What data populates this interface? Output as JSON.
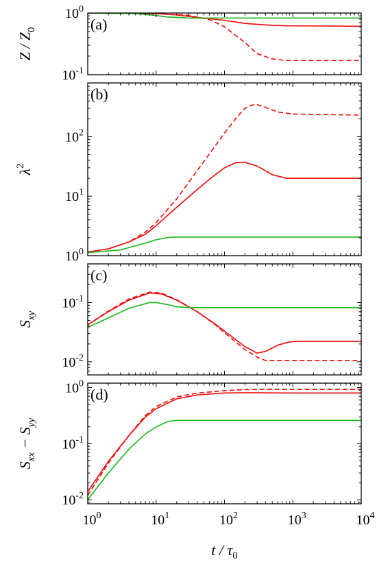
{
  "chart_data": [
    {
      "type": "line",
      "panel_label": "(a)",
      "ylabel_main": "Z / Z",
      "ylabel_sub": "0",
      "x_scale": "log",
      "y_scale": "log",
      "xlim": [
        1,
        10000
      ],
      "ylim": [
        0.1,
        1
      ],
      "yticks": [
        {
          "mantissa": "10",
          "exp": "0",
          "v": 1
        },
        {
          "mantissa": "10",
          "exp": "-1",
          "v": 0.1
        }
      ],
      "grid": false,
      "series": [
        {
          "color": "#ee1111",
          "dash": "solid",
          "x": [
            1,
            10,
            20,
            40,
            100,
            200,
            400,
            800,
            1000,
            10000
          ],
          "y": [
            1.0,
            0.98,
            0.93,
            0.85,
            0.76,
            0.68,
            0.64,
            0.62,
            0.62,
            0.61
          ]
        },
        {
          "color": "#ee1111",
          "dash": "dashed",
          "x": [
            1,
            10,
            30,
            60,
            100,
            200,
            300,
            500,
            800,
            1000,
            10000
          ],
          "y": [
            1.0,
            0.98,
            0.92,
            0.78,
            0.6,
            0.33,
            0.22,
            0.18,
            0.17,
            0.17,
            0.17
          ]
        },
        {
          "color": "#22bb22",
          "dash": "solid",
          "x": [
            1,
            5,
            10,
            15,
            20,
            30,
            10000
          ],
          "y": [
            1.0,
            0.98,
            0.91,
            0.86,
            0.85,
            0.83,
            0.83
          ]
        }
      ]
    },
    {
      "type": "line",
      "panel_label": "(b)",
      "ylabel_main": "λ",
      "ylabel_sup": "2",
      "x_scale": "log",
      "y_scale": "log",
      "xlim": [
        1,
        10000
      ],
      "ylim": [
        1,
        800
      ],
      "yticks": [
        {
          "mantissa": "10",
          "exp": "0",
          "v": 1
        },
        {
          "mantissa": "10",
          "exp": "1",
          "v": 10
        },
        {
          "mantissa": "10",
          "exp": "2",
          "v": 100
        }
      ],
      "grid": false,
      "series": [
        {
          "color": "#ee1111",
          "dash": "solid",
          "x": [
            1,
            2,
            4,
            7,
            10,
            20,
            40,
            70,
            100,
            150,
            200,
            300,
            500,
            800,
            1000,
            10000
          ],
          "y": [
            1.15,
            1.3,
            1.7,
            2.3,
            3.2,
            6.5,
            13,
            22,
            30,
            37,
            37,
            32,
            23,
            20,
            20,
            20
          ]
        },
        {
          "color": "#ee1111",
          "dash": "dashed",
          "x": [
            1,
            2,
            4,
            7,
            10,
            20,
            40,
            70,
            100,
            150,
            200,
            250,
            300,
            400,
            600,
            1000,
            10000
          ],
          "y": [
            1.15,
            1.3,
            1.7,
            2.5,
            3.6,
            9,
            27,
            65,
            115,
            210,
            300,
            340,
            345,
            310,
            260,
            240,
            230
          ]
        },
        {
          "color": "#22bb22",
          "dash": "solid",
          "x": [
            1,
            3,
            6,
            10,
            15,
            20,
            30,
            10000
          ],
          "y": [
            1.12,
            1.25,
            1.55,
            1.85,
            2.02,
            2.05,
            2.05,
            2.05
          ]
        }
      ]
    },
    {
      "type": "line",
      "panel_label": "(c)",
      "ylabel_main": "S",
      "ylabel_sub": "xy",
      "x_scale": "log",
      "y_scale": "log",
      "xlim": [
        1,
        10000
      ],
      "ylim": [
        0.006,
        0.45
      ],
      "yticks": [
        {
          "mantissa": "10",
          "exp": "-1",
          "v": 0.1
        },
        {
          "mantissa": "10",
          "exp": "-2",
          "v": 0.01
        }
      ],
      "grid": false,
      "series": [
        {
          "color": "#ee1111",
          "dash": "solid",
          "x": [
            1,
            2,
            4,
            8,
            12,
            20,
            40,
            70,
            100,
            200,
            300,
            400,
            600,
            800,
            1000,
            10000
          ],
          "y": [
            0.042,
            0.07,
            0.11,
            0.145,
            0.14,
            0.11,
            0.07,
            0.045,
            0.033,
            0.018,
            0.014,
            0.015,
            0.019,
            0.021,
            0.022,
            0.022
          ]
        },
        {
          "color": "#ee1111",
          "dash": "dashed",
          "x": [
            1,
            2,
            4,
            8,
            12,
            20,
            40,
            70,
            100,
            200,
            300,
            400,
            600,
            800,
            1000,
            10000
          ],
          "y": [
            0.042,
            0.072,
            0.115,
            0.15,
            0.145,
            0.112,
            0.07,
            0.044,
            0.031,
            0.016,
            0.012,
            0.0105,
            0.0105,
            0.0105,
            0.0105,
            0.0105
          ]
        },
        {
          "color": "#22bb22",
          "dash": "solid",
          "x": [
            1,
            2,
            4,
            8,
            10,
            15,
            20,
            30,
            10000
          ],
          "y": [
            0.038,
            0.055,
            0.08,
            0.1,
            0.1,
            0.092,
            0.085,
            0.082,
            0.082
          ]
        }
      ]
    },
    {
      "type": "line",
      "panel_label": "(d)",
      "ylabel_main": "S",
      "ylabel_sub": "xx",
      "ylabel_minus": " − S",
      "ylabel_sub2": "yy",
      "x_scale": "log",
      "y_scale": "log",
      "xlim": [
        1,
        10000
      ],
      "ylim": [
        0.0085,
        1.2
      ],
      "yticks": [
        {
          "mantissa": "10",
          "exp": "0",
          "v": 1
        },
        {
          "mantissa": "10",
          "exp": "-1",
          "v": 0.1
        },
        {
          "mantissa": "10",
          "exp": "-2",
          "v": 0.01
        }
      ],
      "xticks": [
        {
          "mantissa": "10",
          "exp": "0",
          "v": 1
        },
        {
          "mantissa": "10",
          "exp": "1",
          "v": 10
        },
        {
          "mantissa": "10",
          "exp": "2",
          "v": 100
        },
        {
          "mantissa": "10",
          "exp": "3",
          "v": 1000
        },
        {
          "mantissa": "10",
          "exp": "4",
          "v": 10000
        }
      ],
      "xlabel_main": "t / τ",
      "xlabel_sub": "0",
      "grid": false,
      "series": [
        {
          "color": "#ee1111",
          "dash": "solid",
          "x": [
            1,
            2,
            4,
            7,
            10,
            20,
            40,
            100,
            200,
            1000,
            10000
          ],
          "y": [
            0.014,
            0.048,
            0.14,
            0.3,
            0.42,
            0.63,
            0.74,
            0.8,
            0.81,
            0.8,
            0.8
          ]
        },
        {
          "color": "#ee1111",
          "dash": "dashed",
          "x": [
            1,
            2,
            4,
            7,
            10,
            20,
            40,
            100,
            200,
            400,
            1000,
            10000
          ],
          "y": [
            0.012,
            0.045,
            0.14,
            0.32,
            0.46,
            0.68,
            0.8,
            0.88,
            0.92,
            0.93,
            0.93,
            0.93
          ]
        },
        {
          "color": "#22bb22",
          "dash": "solid",
          "x": [
            1,
            2,
            4,
            7,
            10,
            15,
            20,
            30,
            10000
          ],
          "y": [
            0.01,
            0.03,
            0.08,
            0.15,
            0.2,
            0.25,
            0.26,
            0.26,
            0.26
          ]
        }
      ]
    }
  ]
}
